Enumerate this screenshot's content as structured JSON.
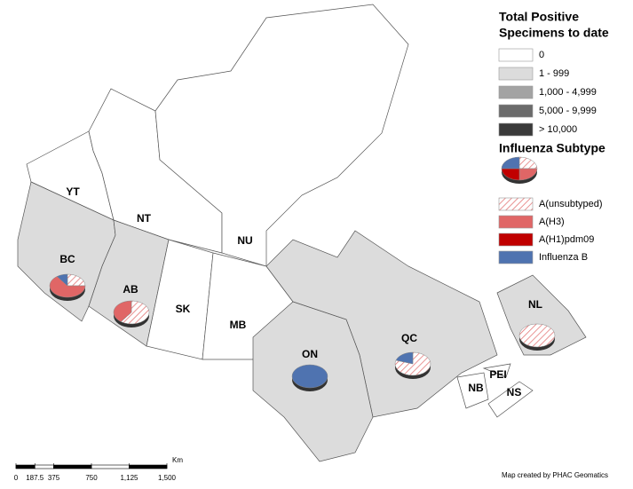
{
  "legend": {
    "title_lines": [
      "Total Positive",
      "Specimens to date"
    ],
    "classes": [
      {
        "label": "0",
        "color": "#ffffff"
      },
      {
        "label": "1 - 999",
        "color": "#dcdcdc"
      },
      {
        "label": "1,000 - 4,999",
        "color": "#a3a3a3"
      },
      {
        "label": "5,000 - 9,999",
        "color": "#6b6b6b"
      },
      {
        "label": "> 10,000",
        "color": "#3a3a3a"
      }
    ],
    "subtype_title": "Influenza Subtype",
    "subtypes": [
      {
        "label": "A(unsubtyped)",
        "color": "#e06666",
        "pattern": "hatch"
      },
      {
        "label": "A(H3)",
        "color": "#e06666"
      },
      {
        "label": "A(H1)pdm09",
        "color": "#c00000"
      },
      {
        "label": "Influenza B",
        "color": "#4f73b0"
      }
    ]
  },
  "provinces": [
    {
      "name": "YT",
      "class": 0
    },
    {
      "name": "NT",
      "class": 0
    },
    {
      "name": "NU",
      "class": 0
    },
    {
      "name": "BC",
      "class": 1,
      "pie": [
        25,
        65,
        0,
        10
      ]
    },
    {
      "name": "AB",
      "class": 1,
      "pie": [
        60,
        40,
        0,
        0
      ]
    },
    {
      "name": "SK",
      "class": 0
    },
    {
      "name": "MB",
      "class": 0
    },
    {
      "name": "ON",
      "class": 1,
      "pie": [
        0,
        0,
        0,
        100
      ]
    },
    {
      "name": "QC",
      "class": 1,
      "pie": [
        80,
        0,
        0,
        20
      ]
    },
    {
      "name": "NL",
      "class": 1,
      "pie": [
        100,
        0,
        0,
        0
      ]
    },
    {
      "name": "NB",
      "class": 0
    },
    {
      "name": "PEI",
      "class": 0
    },
    {
      "name": "NS",
      "class": 0
    }
  ],
  "scale": {
    "unit": "Km",
    "ticks": [
      0,
      187.5,
      375,
      750,
      {
        "value": 1125,
        "label": "1,125"
      },
      {
        "value": 1500,
        "label": "1,500"
      }
    ]
  },
  "credit": "Map created by PHAC Geomatics"
}
